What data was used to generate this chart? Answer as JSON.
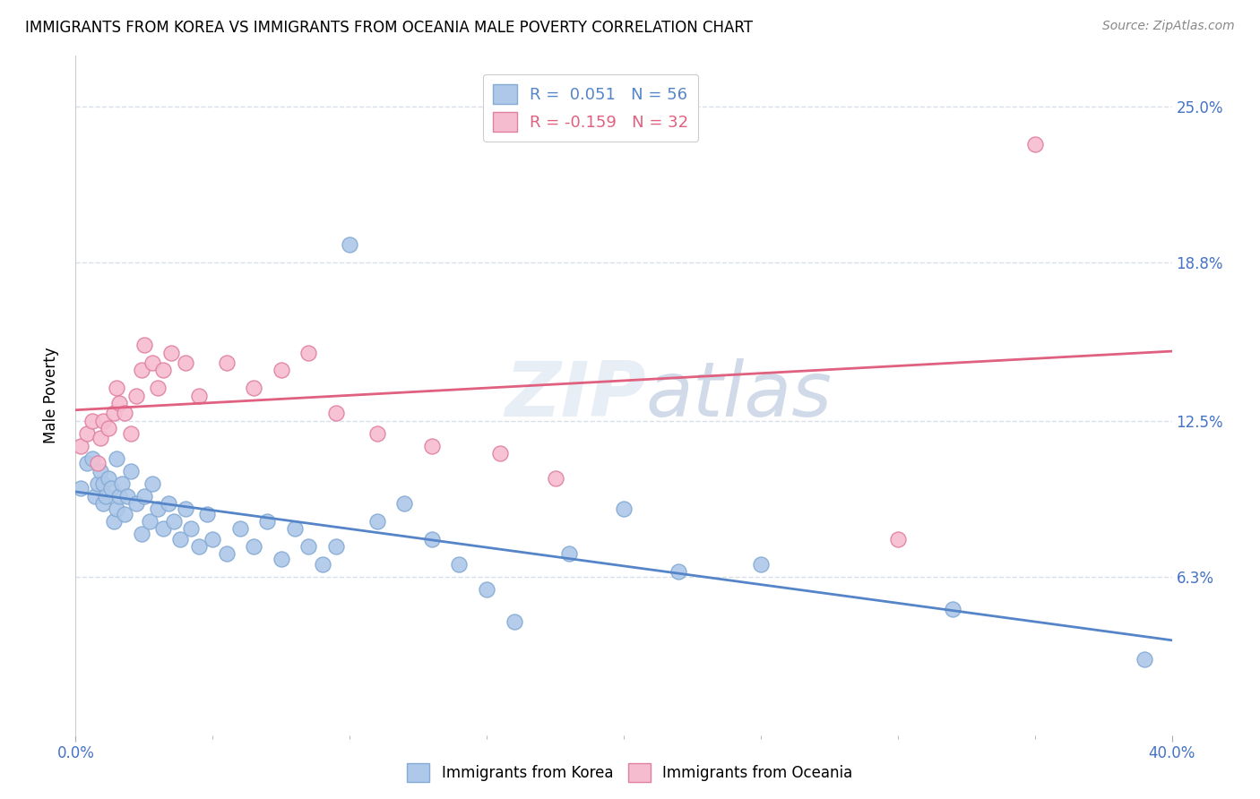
{
  "title": "IMMIGRANTS FROM KOREA VS IMMIGRANTS FROM OCEANIA MALE POVERTY CORRELATION CHART",
  "source": "Source: ZipAtlas.com",
  "ylabel": "Male Poverty",
  "ytick_labels": [
    "6.3%",
    "12.5%",
    "18.8%",
    "25.0%"
  ],
  "ytick_values": [
    0.063,
    0.125,
    0.188,
    0.25
  ],
  "xmin": 0.0,
  "xmax": 0.4,
  "ymin": 0.0,
  "ymax": 0.27,
  "korea_color": "#adc8e8",
  "korea_edge": "#85aad4",
  "oceania_color": "#f5bcd0",
  "oceania_edge": "#e080a0",
  "korea_line_color": "#5585c8",
  "oceania_line_color": "#e06080",
  "korea_R": 0.051,
  "korea_N": 56,
  "oceania_R": -0.159,
  "oceania_N": 32,
  "watermark": "ZIPatlas",
  "korea_x": [
    0.002,
    0.004,
    0.006,
    0.007,
    0.008,
    0.009,
    0.01,
    0.01,
    0.011,
    0.012,
    0.013,
    0.014,
    0.015,
    0.015,
    0.016,
    0.017,
    0.018,
    0.019,
    0.02,
    0.022,
    0.024,
    0.025,
    0.027,
    0.028,
    0.03,
    0.032,
    0.034,
    0.036,
    0.038,
    0.04,
    0.042,
    0.045,
    0.048,
    0.05,
    0.055,
    0.06,
    0.065,
    0.07,
    0.075,
    0.08,
    0.085,
    0.09,
    0.095,
    0.1,
    0.11,
    0.12,
    0.13,
    0.14,
    0.15,
    0.16,
    0.18,
    0.2,
    0.22,
    0.25,
    0.32,
    0.39
  ],
  "korea_y": [
    0.098,
    0.108,
    0.11,
    0.095,
    0.1,
    0.105,
    0.092,
    0.1,
    0.095,
    0.102,
    0.098,
    0.085,
    0.09,
    0.11,
    0.095,
    0.1,
    0.088,
    0.095,
    0.105,
    0.092,
    0.08,
    0.095,
    0.085,
    0.1,
    0.09,
    0.082,
    0.092,
    0.085,
    0.078,
    0.09,
    0.082,
    0.075,
    0.088,
    0.078,
    0.072,
    0.082,
    0.075,
    0.085,
    0.07,
    0.082,
    0.075,
    0.068,
    0.075,
    0.195,
    0.085,
    0.092,
    0.078,
    0.068,
    0.058,
    0.045,
    0.072,
    0.09,
    0.065,
    0.068,
    0.05,
    0.03
  ],
  "oceania_x": [
    0.002,
    0.004,
    0.006,
    0.008,
    0.009,
    0.01,
    0.012,
    0.014,
    0.015,
    0.016,
    0.018,
    0.02,
    0.022,
    0.024,
    0.025,
    0.028,
    0.03,
    0.032,
    0.035,
    0.04,
    0.045,
    0.055,
    0.065,
    0.075,
    0.085,
    0.095,
    0.11,
    0.13,
    0.155,
    0.175,
    0.3,
    0.35
  ],
  "oceania_y": [
    0.115,
    0.12,
    0.125,
    0.108,
    0.118,
    0.125,
    0.122,
    0.128,
    0.138,
    0.132,
    0.128,
    0.12,
    0.135,
    0.145,
    0.155,
    0.148,
    0.138,
    0.145,
    0.152,
    0.148,
    0.135,
    0.148,
    0.138,
    0.145,
    0.152,
    0.128,
    0.12,
    0.115,
    0.112,
    0.102,
    0.078,
    0.235
  ],
  "grid_color": "#d8dfe8",
  "background_color": "#ffffff"
}
